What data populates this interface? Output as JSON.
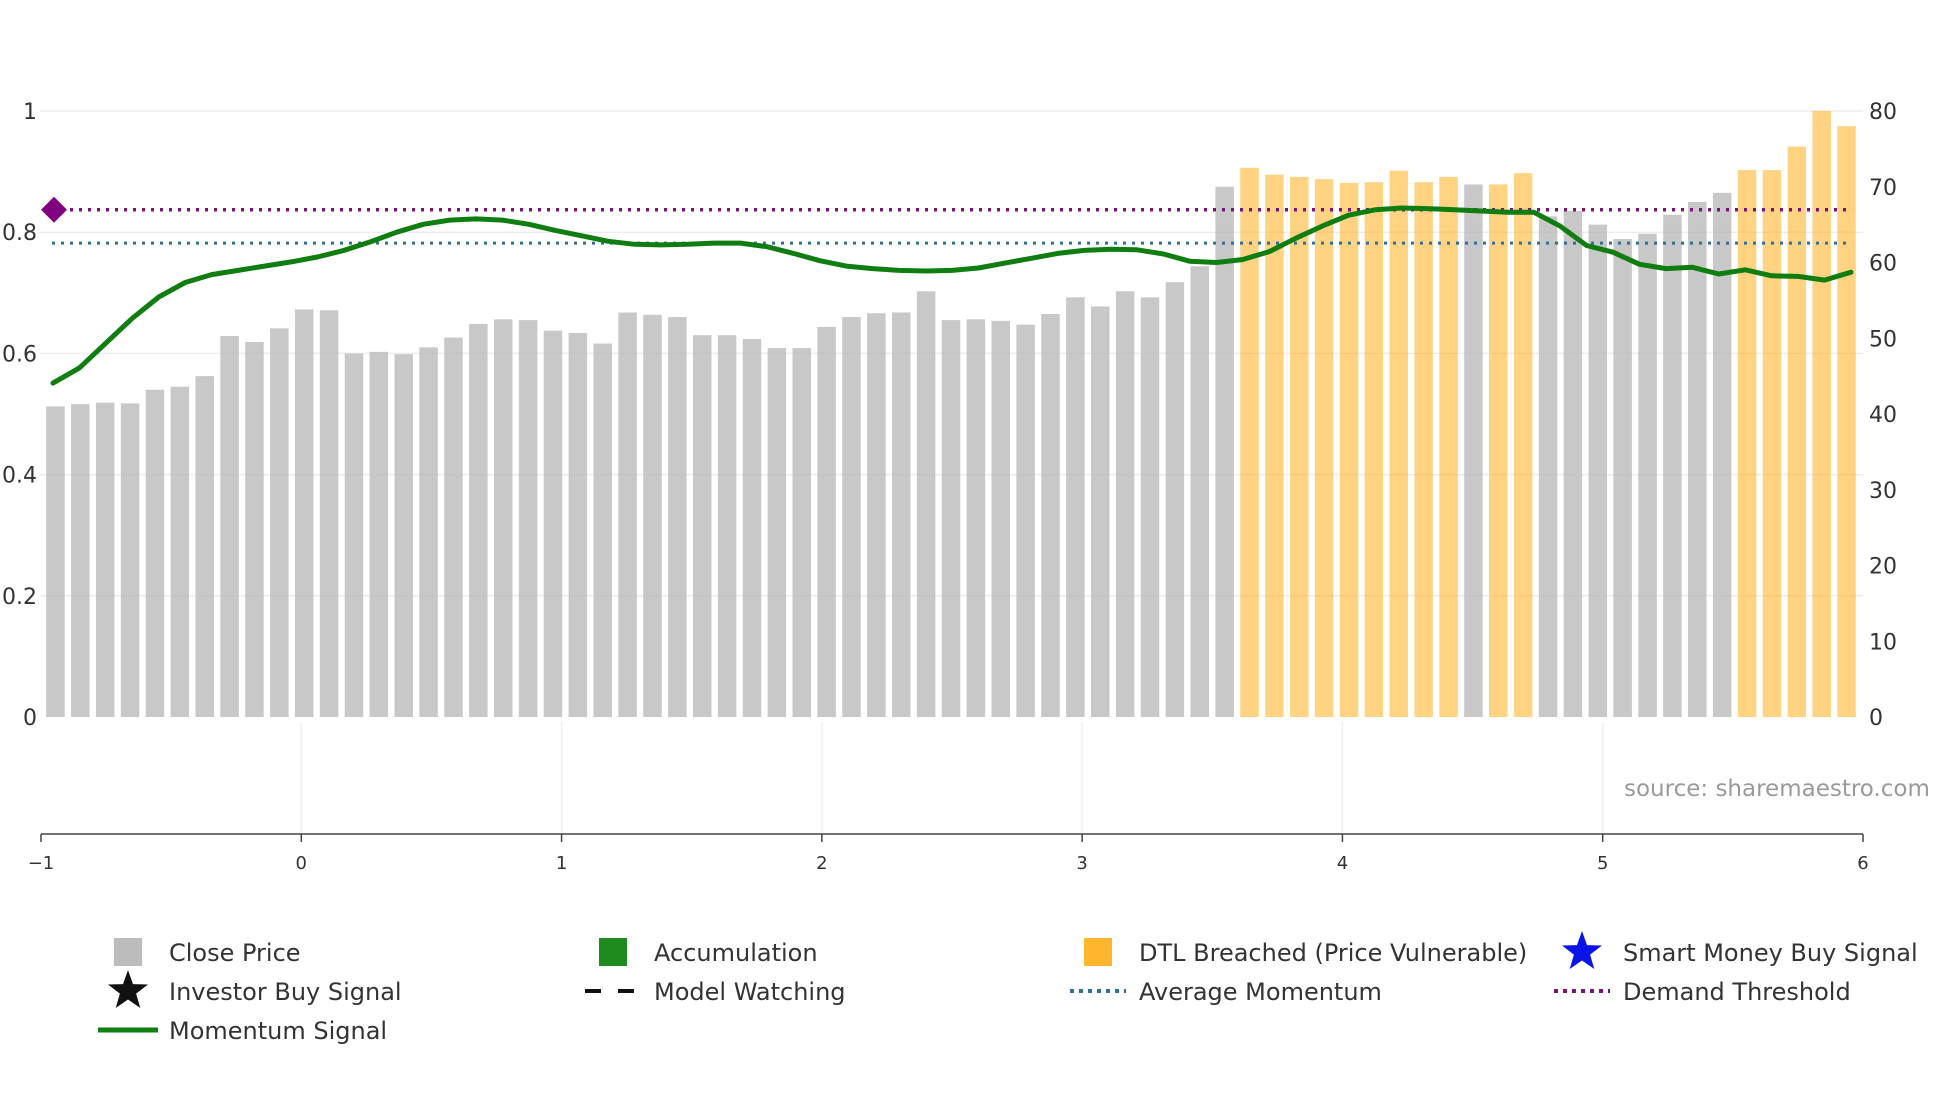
{
  "chart_data": {
    "type": "bar",
    "title": "",
    "source": "source: sharemaestro.com",
    "x_axis": {
      "range": [
        -1,
        6
      ],
      "ticks": [
        "−1",
        "0",
        "1",
        "2",
        "3",
        "4",
        "5",
        "6"
      ]
    },
    "y_left": {
      "range": [
        0,
        1
      ],
      "ticks": [
        "0",
        "0.2",
        "0.4",
        "0.6",
        "0.8",
        "1"
      ]
    },
    "y_right": {
      "range": [
        0,
        80
      ],
      "ticks": [
        "0",
        "10",
        "20",
        "30",
        "40",
        "50",
        "60",
        "70",
        "80"
      ]
    },
    "colors": {
      "close_price": "#b8b8b8",
      "accumulation": "#1e8b1e",
      "dtl_breached": "#ffb52e",
      "smart_money": "#0a14e6",
      "investor": "#111111",
      "momentum": "#0f7d0f",
      "average_momentum": "#2f6f9a",
      "demand_threshold": "#7a147a",
      "marker": "#800080"
    },
    "bars": {
      "values": [
        41,
        41.3,
        41.5,
        41.4,
        43.2,
        43.6,
        45,
        50.3,
        49.5,
        51.3,
        53.8,
        53.7,
        48,
        48.2,
        47.9,
        48.8,
        50.1,
        51.9,
        52.5,
        52.4,
        51,
        50.7,
        49.3,
        53.4,
        53.1,
        52.8,
        50.4,
        50.4,
        49.9,
        48.7,
        48.7,
        51.5,
        52.8,
        53.3,
        53.4,
        56.2,
        52.4,
        52.5,
        52.3,
        51.8,
        53.2,
        55.4,
        54.2,
        56.2,
        55.4,
        57.4,
        59.5,
        70,
        72.5,
        71.6,
        71.3,
        71,
        70.5,
        70.6,
        72.1,
        70.6,
        71.3,
        70.3,
        70.3,
        71.8,
        66.1,
        66.8,
        65,
        63.1,
        63.8,
        66.3,
        68,
        69.2,
        72.2,
        72.2,
        75.3,
        80,
        78
      ],
      "categories": [
        "gray",
        "gray",
        "gray",
        "gray",
        "gray",
        "gray",
        "gray",
        "gray",
        "gray",
        "gray",
        "gray",
        "gray",
        "gray",
        "gray",
        "gray",
        "gray",
        "gray",
        "gray",
        "gray",
        "gray",
        "gray",
        "gray",
        "gray",
        "gray",
        "gray",
        "gray",
        "gray",
        "gray",
        "gray",
        "gray",
        "gray",
        "gray",
        "gray",
        "gray",
        "gray",
        "gray",
        "gray",
        "gray",
        "gray",
        "gray",
        "gray",
        "gray",
        "gray",
        "gray",
        "gray",
        "gray",
        "gray",
        "gray",
        "orange",
        "orange",
        "orange",
        "orange",
        "orange",
        "orange",
        "orange",
        "orange",
        "orange",
        "gray",
        "orange",
        "orange",
        "gray",
        "gray",
        "gray",
        "gray",
        "gray",
        "gray",
        "gray",
        "gray",
        "orange",
        "orange",
        "orange",
        "orange",
        "orange"
      ]
    },
    "momentum": {
      "values": [
        0.551,
        0.576,
        0.617,
        0.658,
        0.693,
        0.717,
        0.73,
        0.737,
        0.744,
        0.751,
        0.759,
        0.77,
        0.784,
        0.8,
        0.813,
        0.82,
        0.822,
        0.82,
        0.813,
        0.803,
        0.794,
        0.785,
        0.78,
        0.779,
        0.78,
        0.782,
        0.782,
        0.776,
        0.765,
        0.753,
        0.744,
        0.74,
        0.737,
        0.736,
        0.737,
        0.741,
        0.749,
        0.757,
        0.765,
        0.77,
        0.772,
        0.771,
        0.764,
        0.752,
        0.75,
        0.755,
        0.768,
        0.79,
        0.81,
        0.828,
        0.837,
        0.84,
        0.839,
        0.837,
        0.835,
        0.833,
        0.833,
        0.81,
        0.778,
        0.767,
        0.747,
        0.74,
        0.742,
        0.731,
        0.738,
        0.728,
        0.727,
        0.721,
        0.734
      ]
    },
    "average_momentum": 0.782,
    "demand_threshold": 0.837,
    "marker": {
      "x": -0.95,
      "y": 0.837
    },
    "legend": [
      {
        "label": "Close Price",
        "type": "square",
        "color_key": "close_price"
      },
      {
        "label": "Accumulation",
        "type": "square",
        "color_key": "accumulation"
      },
      {
        "label": "DTL Breached (Price Vulnerable)",
        "type": "square",
        "color_key": "dtl_breached"
      },
      {
        "label": "Smart Money Buy Signal",
        "type": "star",
        "color_key": "smart_money"
      },
      {
        "label": "Investor Buy Signal",
        "type": "star",
        "color_key": "investor"
      },
      {
        "label": "Model Watching",
        "type": "dash",
        "color_key": "investor"
      },
      {
        "label": "Average Momentum",
        "type": "dotted",
        "color_key": "average_momentum"
      },
      {
        "label": "Demand Threshold",
        "type": "dotted",
        "color_key": "demand_threshold"
      },
      {
        "label": "Momentum Signal",
        "type": "line",
        "color_key": "momentum"
      }
    ]
  }
}
